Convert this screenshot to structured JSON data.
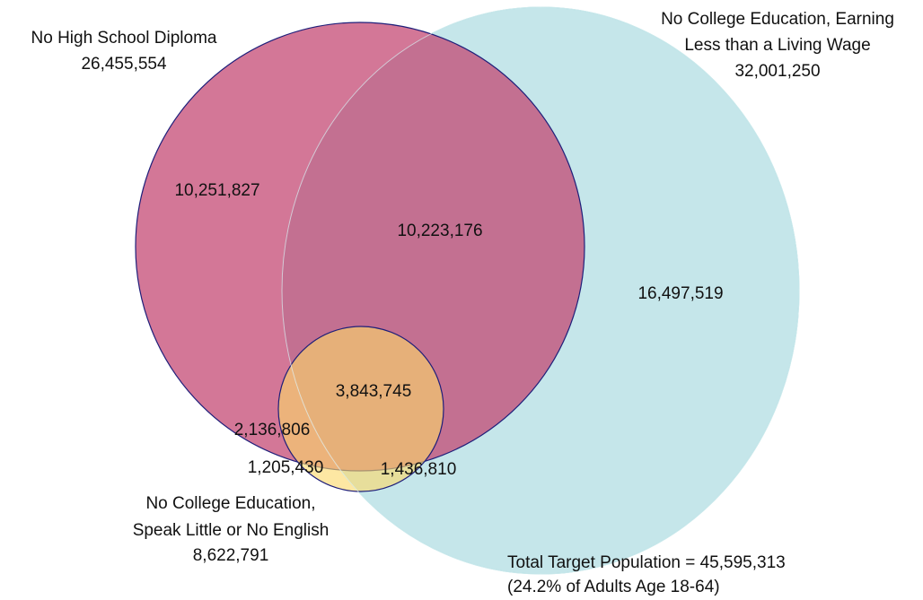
{
  "sets": [
    {
      "label_lines": [
        "No High School Diploma"
      ],
      "total": "26,455,554"
    },
    {
      "label_lines": [
        "No College Education, Earning",
        "Less than a Living Wage"
      ],
      "total": "32,001,250"
    },
    {
      "label_lines": [
        "No College Education,",
        "Speak Little or No English"
      ],
      "total": "8,622,791"
    }
  ],
  "regions": [
    {
      "label": "10,251,827"
    },
    {
      "label": "10,223,176"
    },
    {
      "label": "16,497,519"
    },
    {
      "label": "3,843,745"
    },
    {
      "label": "2,136,806"
    },
    {
      "label": "1,205,430"
    },
    {
      "label": "1,436,810"
    }
  ],
  "footer": {
    "lines": [
      "Total Target Population = 45,595,313",
      "(24.2% of Adults Age 18-64)"
    ]
  }
}
